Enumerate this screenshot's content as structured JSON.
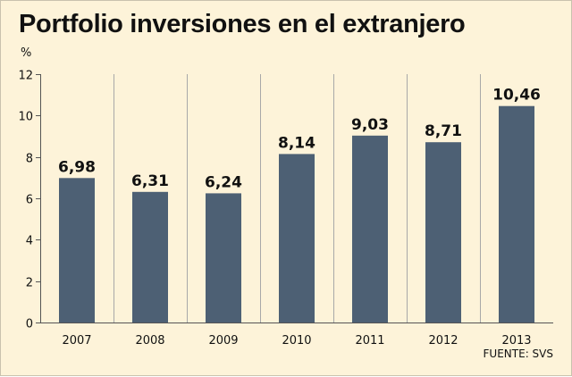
{
  "header": {
    "title": "Portfolio inversiones en el extranjero"
  },
  "footer": {
    "source": "FUENTE: SVS"
  },
  "colors": {
    "background": "#fdf3d9",
    "bar": "#4d6074",
    "gridline": "#a8a8a8",
    "text": "#111111"
  },
  "chart_data": {
    "type": "bar",
    "title": "Portfolio inversiones en el extranjero",
    "xlabel": "",
    "ylabel": "%",
    "ylim": [
      0,
      12
    ],
    "yticks": [
      "0",
      "2",
      "4",
      "6",
      "8",
      "10",
      "12"
    ],
    "categories": [
      "2007",
      "2008",
      "2009",
      "2010",
      "2011",
      "2012",
      "2013"
    ],
    "values": [
      6.98,
      6.31,
      6.24,
      8.14,
      9.03,
      8.71,
      10.46
    ],
    "data_labels": [
      "6,98",
      "6,31",
      "6,24",
      "8,14",
      "9,03",
      "8,71",
      "10,46"
    ],
    "grid": "vertical category separators",
    "legend": "none"
  }
}
